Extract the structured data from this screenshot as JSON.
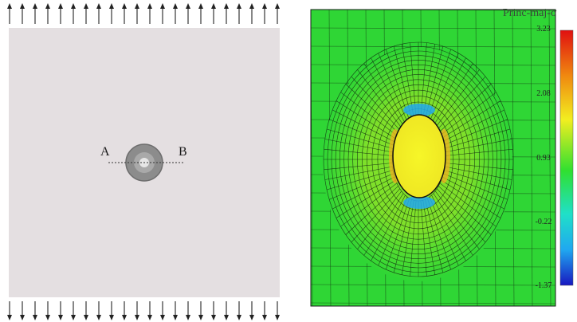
{
  "schematic": {
    "point_a": "A",
    "point_b": "B"
  },
  "contour": {
    "legend_title": "Princ-maj-σ",
    "legend_ticks": [
      "3.23",
      "2.08",
      "0.93",
      "-0.22",
      "-1.37"
    ],
    "color_min": "#2020c8",
    "color_mid": "#20e020",
    "color_max": "#e01010"
  },
  "colors": {
    "plate": "#e4dfe1",
    "arrow": "#222222",
    "field": "#2fd635",
    "inclusion": "#f2f226",
    "ring": "#8c8c8c"
  }
}
